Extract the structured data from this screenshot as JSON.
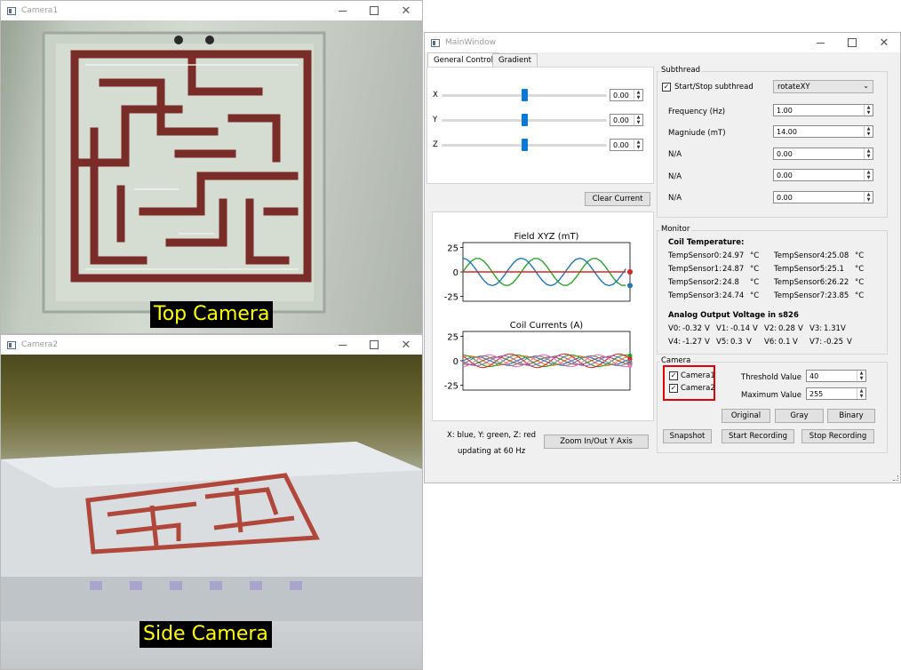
{
  "camera1": {
    "title": "Camera1",
    "overlay_label": "Top Camera"
  },
  "camera2": {
    "title": "Camera2",
    "overlay_label": "Side Camera"
  },
  "main": {
    "title": "MainWindow",
    "tabs": [
      {
        "label": "General Control"
      },
      {
        "label": "Gradient"
      }
    ],
    "sliders": [
      {
        "label": "X",
        "value": "0.00"
      },
      {
        "label": "Y",
        "value": "0.00"
      },
      {
        "label": "Z",
        "value": "0.00"
      }
    ],
    "clear_current_label": "Clear Current",
    "plot_field": {
      "title": "Field XYZ (mT)"
    },
    "plot_currents": {
      "title": "Coil Currents (A)"
    },
    "legend_text": "X: blue, Y: green, Z: red",
    "update_rate_text": "updating at 60 Hz",
    "zoom_button_label": "Zoom In/Out Y Axis",
    "subthread": {
      "group_title": "Subthread",
      "start_stop_label": "Start/Stop subthread",
      "start_stop_checked": true,
      "mode_value": "rotateXY",
      "params": [
        {
          "label": "Frequency (Hz)",
          "value": "1.00"
        },
        {
          "label": "Magniude (mT)",
          "value": "14.00"
        },
        {
          "label": "N/A",
          "value": "0.00"
        },
        {
          "label": "N/A",
          "value": "0.00"
        },
        {
          "label": "N/A",
          "value": "0.00"
        }
      ]
    },
    "monitor": {
      "group_title": "Monitor",
      "coil_temp_heading": "Coil Temperature:",
      "temp_unit": "°C",
      "temps_left": [
        {
          "name": "TempSensor0:",
          "value": "24.97"
        },
        {
          "name": "TempSensor1:",
          "value": "24.87"
        },
        {
          "name": "TempSensor2:",
          "value": "24.8"
        },
        {
          "name": "TempSensor3:",
          "value": "24.74"
        }
      ],
      "temps_right": [
        {
          "name": "TempSensor4:",
          "value": "25.08"
        },
        {
          "name": "TempSensor5:",
          "value": "25.1"
        },
        {
          "name": "TempSensor6:",
          "value": "26.22"
        },
        {
          "name": "TempSensor7:",
          "value": "23.85"
        }
      ],
      "voltage_heading": "Analog Output Voltage in s826",
      "voltages_row1": [
        {
          "name": "V0:",
          "value": "-0.32",
          "unit": "V"
        },
        {
          "name": "V1:",
          "value": "-0.14",
          "unit": "V"
        },
        {
          "name": "V2:",
          "value": "0.28",
          "unit": "V"
        },
        {
          "name": "V3:",
          "value": "1.31",
          "unit": "V"
        }
      ],
      "voltages_row2": [
        {
          "name": "V4:",
          "value": "-1.27",
          "unit": "V"
        },
        {
          "name": "V5:",
          "value": "0.3",
          "unit": "V"
        },
        {
          "name": "V6:",
          "value": "0.1",
          "unit": "V"
        },
        {
          "name": "V7:",
          "value": "-0.25",
          "unit": "V"
        }
      ]
    },
    "camera": {
      "group_title": "Camera",
      "camera1_label": "Camera1",
      "camera2_label": "Camera2",
      "threshold_label": "Threshold Value",
      "threshold_value": "40",
      "maximum_label": "Maximum Value",
      "maximum_value": "255",
      "original_label": "Original",
      "gray_label": "Gray",
      "binary_label": "Binary",
      "snapshot_label": "Snapshot",
      "start_recording_label": "Start Recording",
      "stop_recording_label": "Stop Recording"
    }
  },
  "colors": {
    "x_series": "#1f77b4",
    "y_series": "#2ca02c",
    "z_series": "#d62728",
    "highlight": "#e00000",
    "slider_thumb": "#0a78d7"
  },
  "chart_data": [
    {
      "type": "line",
      "title": "Field XYZ (mT)",
      "yticks": [
        25,
        0,
        -25
      ],
      "ylim": [
        -30,
        30
      ],
      "x": [
        0,
        0.5,
        1,
        1.5,
        2,
        2.5,
        3,
        3.5,
        4,
        4.5,
        5,
        5.5,
        6,
        6.5,
        7,
        7.5,
        8,
        8.5,
        9,
        9.5,
        10,
        10.5,
        11,
        11.5,
        12,
        12.5,
        13,
        13.5,
        14,
        14.5,
        15,
        15.5,
        16,
        16.5,
        17,
        17.5,
        18,
        18.5,
        19,
        19.5,
        20
      ],
      "series": [
        {
          "values": [
            14,
            12.6,
            8.7,
            3.1,
            -3.0,
            -8.7,
            -12.6,
            -14,
            -12.6,
            -8.6,
            -3.0,
            3.1,
            8.7,
            12.7,
            14,
            12.6,
            8.6,
            3.0,
            -3.1,
            -8.7,
            -12.7,
            -14,
            -12.6,
            -8.6,
            -3.0,
            3.1,
            8.7,
            12.7,
            14,
            12.6,
            8.6,
            3.0,
            -3.1,
            -8.7,
            -12.7,
            -14,
            -12.6,
            -8.6,
            -3.0,
            3.1,
            -14
          ]
        },
        {
          "values": [
            0,
            6.1,
            11.0,
            13.7,
            13.7,
            11.0,
            6.1,
            0,
            -6.1,
            -11.0,
            -13.7,
            -13.7,
            -11.0,
            -6.1,
            0,
            6.1,
            11.0,
            13.7,
            13.7,
            11.0,
            6.1,
            0,
            -6.1,
            -11.0,
            -13.7,
            -13.7,
            -11.0,
            -6.1,
            0,
            6.1,
            11.0,
            13.7,
            13.7,
            11.0,
            6.1,
            0,
            -6.1,
            -11.0,
            -13.7,
            -13.7,
            0
          ]
        },
        {
          "values": [
            0,
            0,
            0,
            0,
            0,
            0,
            0,
            0,
            0,
            0,
            0,
            0,
            0,
            0,
            0,
            0,
            0,
            0,
            0,
            0,
            0,
            0,
            0,
            0,
            0,
            0,
            0,
            0,
            0,
            0,
            0,
            0,
            0,
            0,
            0,
            0,
            0,
            0,
            0,
            0,
            0
          ]
        }
      ]
    },
    {
      "type": "line",
      "title": "Coil Currents (A)",
      "yticks": [
        25,
        0,
        -25
      ],
      "ylim": [
        -30,
        30
      ],
      "series_count": 8,
      "amplitudes": [
        4,
        5,
        6,
        7,
        5,
        4,
        6,
        5
      ],
      "phases": [
        0,
        0.8,
        1.6,
        2.4,
        3.2,
        4.0,
        4.8,
        5.6
      ]
    }
  ]
}
